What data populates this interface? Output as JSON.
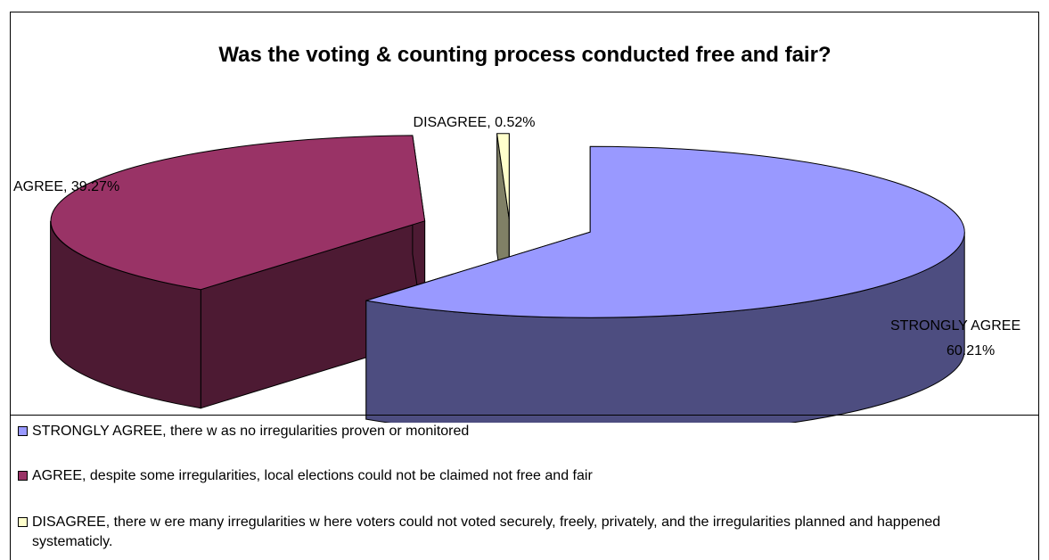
{
  "chart_data": {
    "type": "pie",
    "title": "Was the voting & counting process conducted free and fair?",
    "slices": [
      {
        "name": "STRONGLY AGREE",
        "value": 60.21,
        "label_category": "STRONGLY AGREE",
        "label_value": "60.21%",
        "color": "#9999ff",
        "side_color": "#4d4d80",
        "legend_text": "STRONGLY AGREE, there w as no irregularities proven or monitored"
      },
      {
        "name": "AGREE",
        "value": 39.27,
        "label": "AGREE, 39.27%",
        "color": "#993366",
        "side_color": "#4d1a33",
        "legend_text": "AGREE, despite some irregularities, local elections could not be claimed not free and fair"
      },
      {
        "name": "DISAGREE",
        "value": 0.52,
        "label": "DISAGREE, 0.52%",
        "color": "#ffffcc",
        "side_color": "#808066",
        "legend_text": "DISAGREE,  there w ere many irregularities w here voters could not voted securely, freely, privately, and the irregularities planned and happened systematicly."
      }
    ],
    "exploded": true,
    "three_d": true,
    "legend_position": "bottom"
  }
}
